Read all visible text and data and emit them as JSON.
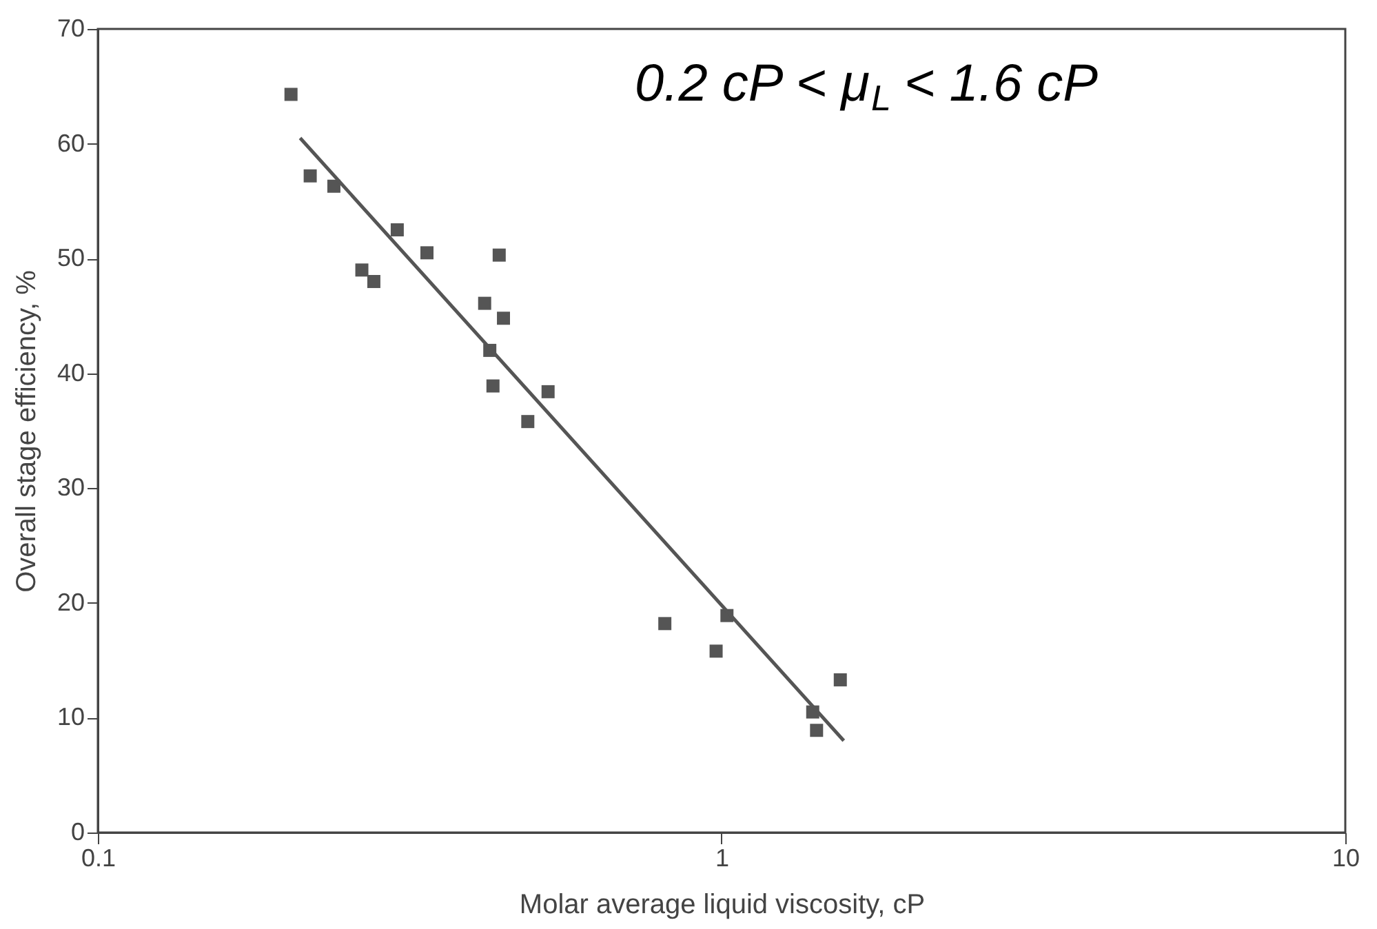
{
  "chart_data": {
    "type": "scatter",
    "xlabel": "Molar average liquid viscosity, cP",
    "ylabel": "Overall stage efficiency, %",
    "annotations": [
      "0.2 cP < μ$_{L}$ < 1.6 cP"
    ],
    "log": "x",
    "xlim": [
      0.1,
      10
    ],
    "xticks": [
      0.1,
      1,
      10
    ],
    "ylim": [
      0,
      70
    ],
    "yticks": [
      0,
      10,
      20,
      30,
      40,
      50,
      60,
      70
    ],
    "grid": false,
    "series": [
      {
        "marker": "square",
        "color": "#555555",
        "x": [
          0.204,
          0.219,
          0.239,
          0.302,
          0.265,
          0.277,
          0.337,
          0.44,
          0.417,
          0.447,
          0.425,
          0.43,
          0.527,
          0.489,
          0.811,
          1.02,
          0.98,
          1.55,
          1.4,
          1.42
        ],
        "values": [
          64.3,
          57.2,
          56.3,
          52.5,
          49,
          48,
          50.5,
          50.3,
          46.1,
          44.8,
          42,
          38.9,
          38.4,
          35.8,
          18.2,
          18.9,
          15.8,
          13.3,
          10.5,
          8.9
        ]
      },
      {
        "type": "line",
        "marker": "none",
        "color": "#555555",
        "x": [
          0.211,
          1.57
        ],
        "values": [
          60.5,
          8
        ]
      }
    ]
  }
}
